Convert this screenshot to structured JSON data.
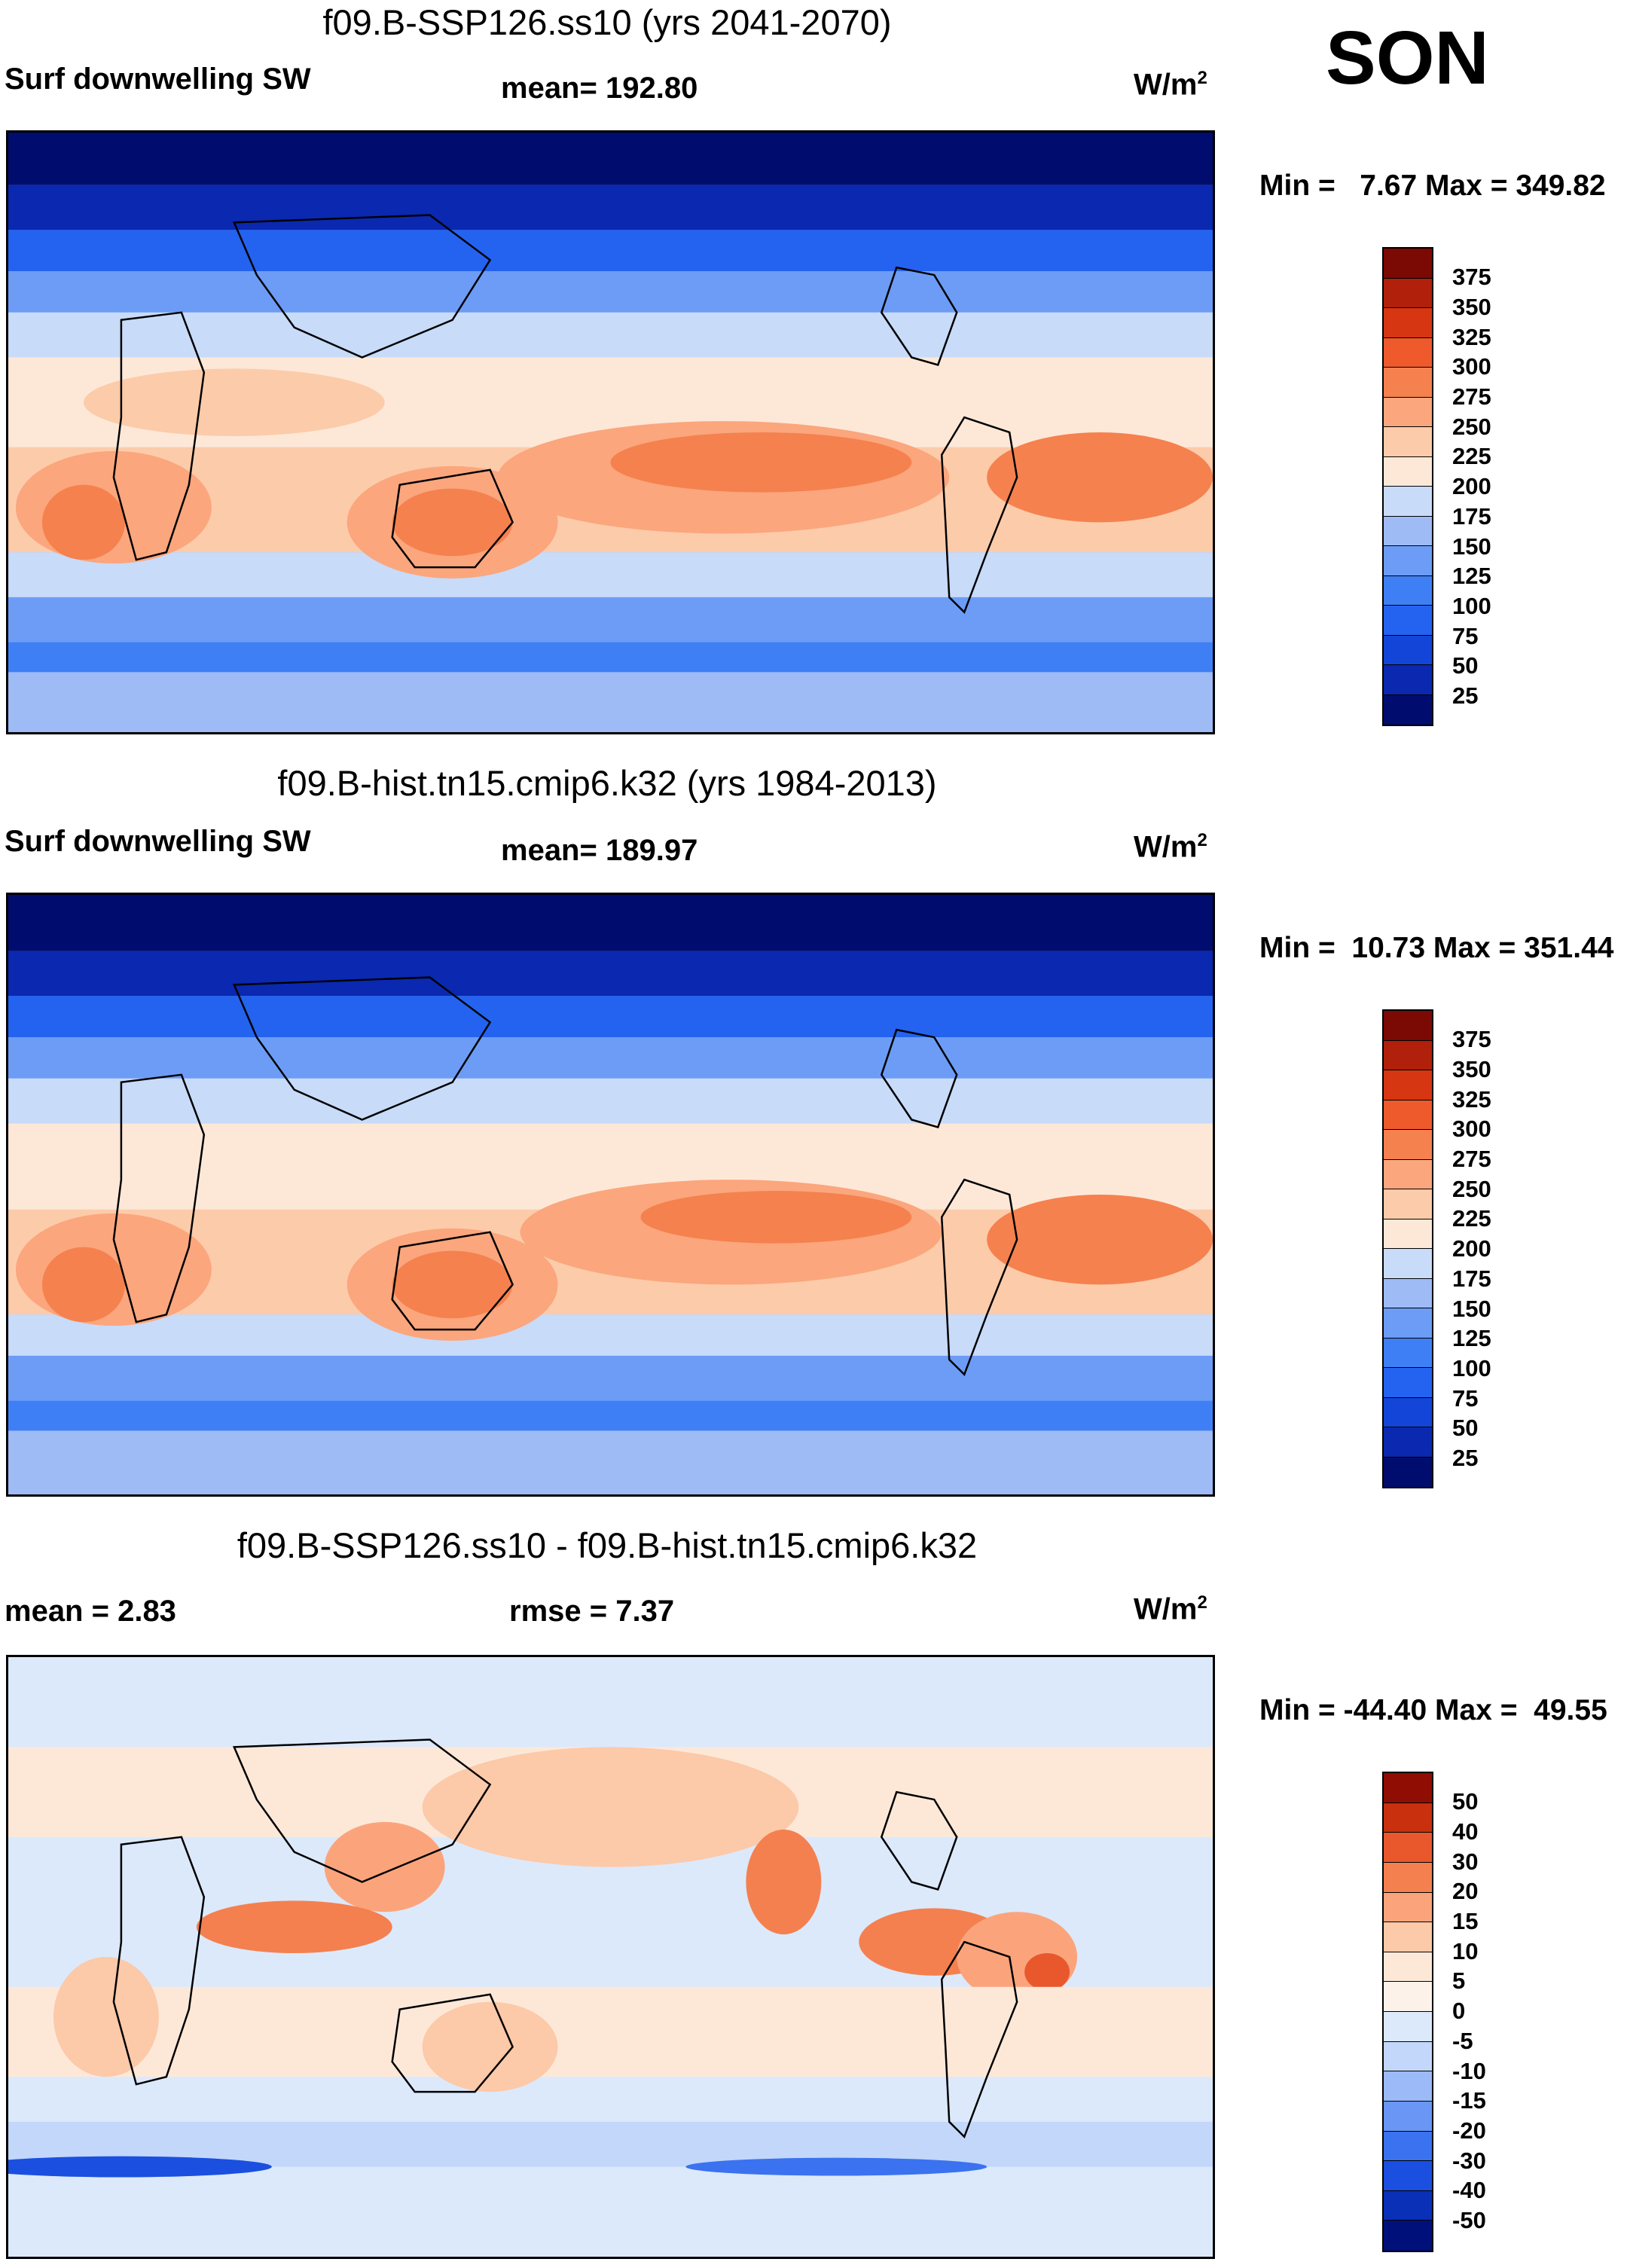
{
  "season": "SON",
  "panels": [
    {
      "title": "f09.B-SSP126.ss10 (yrs 2041-2070)",
      "left_label": "Surf downwelling SW",
      "center_label": "mean= 192.80",
      "units_base": "W/m",
      "units_exp": "2",
      "minmax": "Min =   7.67 Max = 349.82",
      "colorbar": [
        "375",
        "350",
        "325",
        "300",
        "275",
        "250",
        "225",
        "200",
        "175",
        "150",
        "125",
        "100",
        "75",
        "50",
        "25"
      ]
    },
    {
      "title": "f09.B-hist.tn15.cmip6.k32 (yrs 1984-2013)",
      "left_label": "Surf downwelling SW",
      "center_label": "mean= 189.97",
      "units_base": "W/m",
      "units_exp": "2",
      "minmax": "Min =  10.73 Max = 351.44",
      "colorbar": [
        "375",
        "350",
        "325",
        "300",
        "275",
        "250",
        "225",
        "200",
        "175",
        "150",
        "125",
        "100",
        "75",
        "50",
        "25"
      ]
    },
    {
      "title": "f09.B-SSP126.ss10 - f09.B-hist.tn15.cmip6.k32",
      "left_label": "mean =    2.83",
      "center_label": "rmse =    7.37",
      "units_base": "W/m",
      "units_exp": "2",
      "minmax": "Min = -44.40 Max =  49.55",
      "colorbar": [
        "50",
        "40",
        "30",
        "20",
        "15",
        "10",
        "5",
        "0",
        "-5",
        "-10",
        "-15",
        "-20",
        "-30",
        "-40",
        "-50"
      ]
    }
  ],
  "palette": {
    "abs": [
      "#000d6e",
      "#0a28b0",
      "#1245d8",
      "#2463f0",
      "#3f7ff5",
      "#6c9cf5",
      "#9ebbf5",
      "#c8dbf8",
      "#fde8d8",
      "#fccbaa",
      "#fba67d",
      "#f5814f",
      "#ee5a2b",
      "#d63612",
      "#b0200a",
      "#7a0a03"
    ],
    "diff": [
      "#00107a",
      "#0a30b8",
      "#1a4fe0",
      "#3a72f0",
      "#6a96f5",
      "#9bbaf7",
      "#c2d7fa",
      "#dce9fb",
      "#fde8d8",
      "#fcc9a9",
      "#fba47c",
      "#f4804f",
      "#e8582c",
      "#c8300e",
      "#8f0d02"
    ]
  }
}
